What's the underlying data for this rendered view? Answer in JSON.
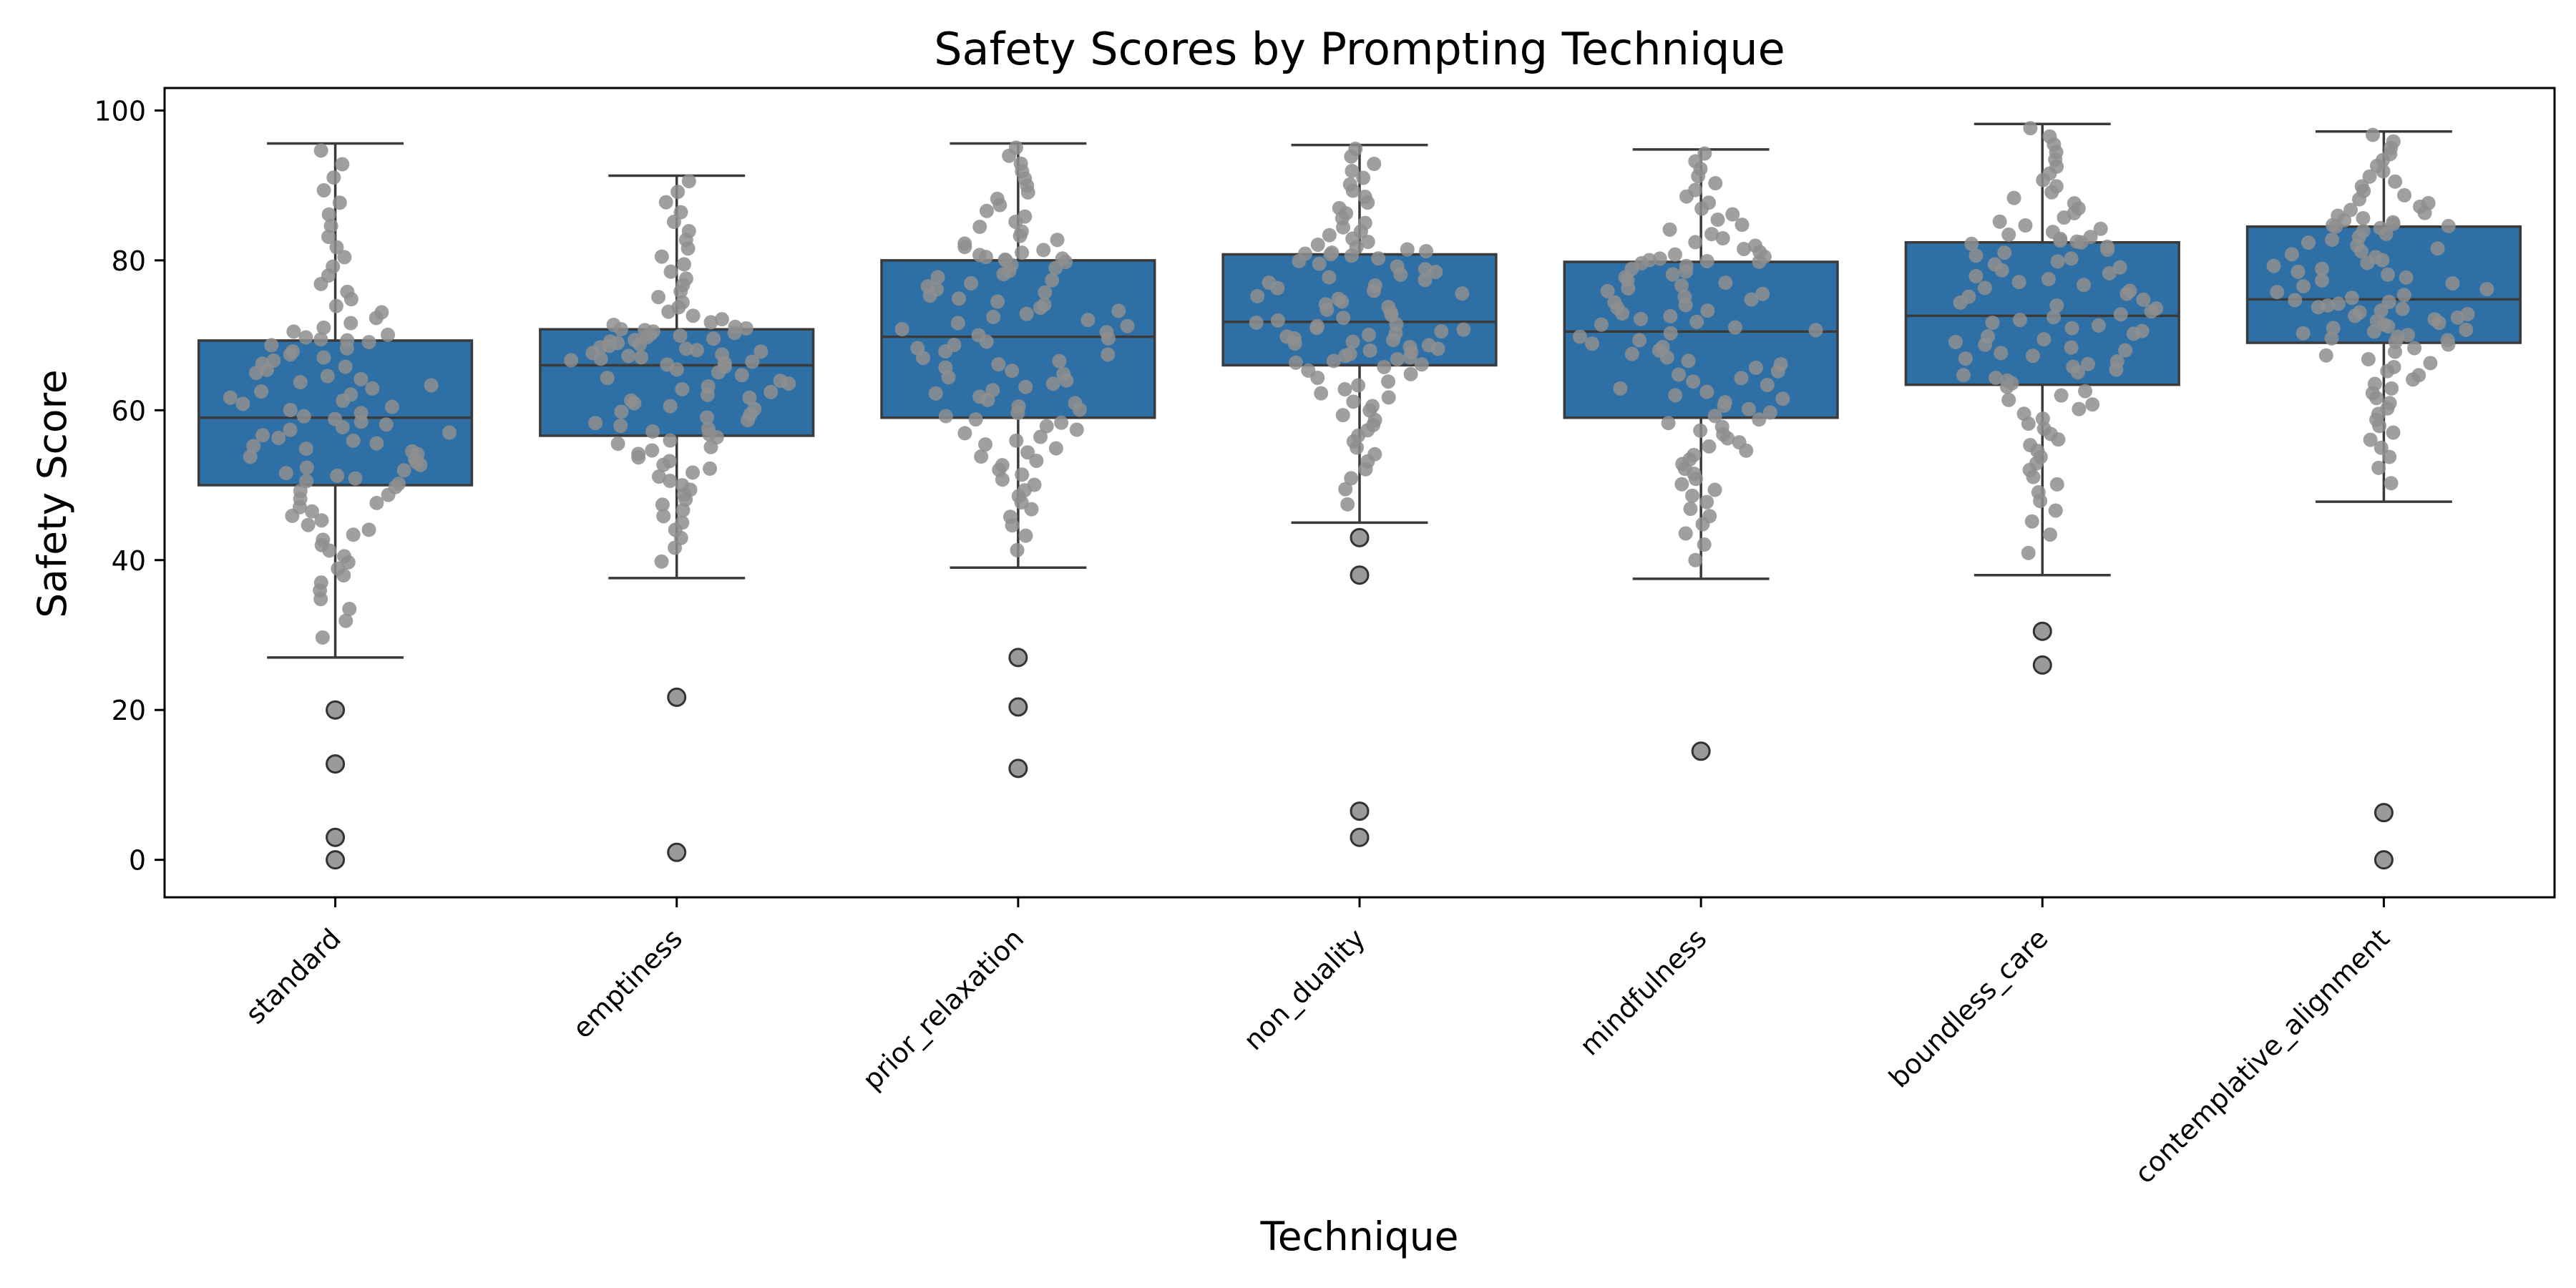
{
  "chart_data": {
    "type": "box",
    "title": "Safety Scores by Prompting Technique",
    "xlabel": "Technique",
    "ylabel": "Safety Score",
    "ylim": [
      -5,
      103
    ],
    "yticks": [
      0,
      20,
      40,
      60,
      80,
      100
    ],
    "grid": false,
    "legend": "none",
    "box_color": "#2e70a6",
    "swarm_color": "#8e8e8e",
    "outlier_color": "#9a9a9a",
    "categories": [
      "standard",
      "emptiness",
      "prior_relaxation",
      "non_duality",
      "mindfulness",
      "boundless_care",
      "contemplative_alignment"
    ],
    "boxes": [
      {
        "name": "standard",
        "whisker_low": 27,
        "q1": 50,
        "median": 59,
        "q3": 69.3,
        "whisker_high": 95.6,
        "outliers": [
          20,
          12.8,
          3,
          0
        ]
      },
      {
        "name": "emptiness",
        "whisker_low": 37.6,
        "q1": 56.6,
        "median": 66,
        "q3": 70.8,
        "whisker_high": 91.3,
        "outliers": [
          21.7,
          1
        ]
      },
      {
        "name": "prior_relaxation",
        "whisker_low": 39,
        "q1": 59,
        "median": 69.8,
        "q3": 80,
        "whisker_high": 95.6,
        "outliers": [
          27,
          20.4,
          12.2
        ]
      },
      {
        "name": "non_duality",
        "whisker_low": 45,
        "q1": 66,
        "median": 71.8,
        "q3": 80.8,
        "whisker_high": 95.4,
        "outliers": [
          43,
          38,
          6.5,
          3
        ]
      },
      {
        "name": "mindfulness",
        "whisker_low": 37.5,
        "q1": 59,
        "median": 70.5,
        "q3": 79.8,
        "whisker_high": 94.8,
        "outliers": [
          14.5
        ]
      },
      {
        "name": "boundless_care",
        "whisker_low": 38,
        "q1": 63.4,
        "median": 72.6,
        "q3": 82.4,
        "whisker_high": 98.2,
        "outliers": [
          30.5,
          26
        ]
      },
      {
        "name": "contemplative_alignment",
        "whisker_low": 47.8,
        "q1": 69,
        "median": 74.8,
        "q3": 84.5,
        "whisker_high": 97.2,
        "outliers": [
          6.3,
          0
        ]
      }
    ]
  }
}
